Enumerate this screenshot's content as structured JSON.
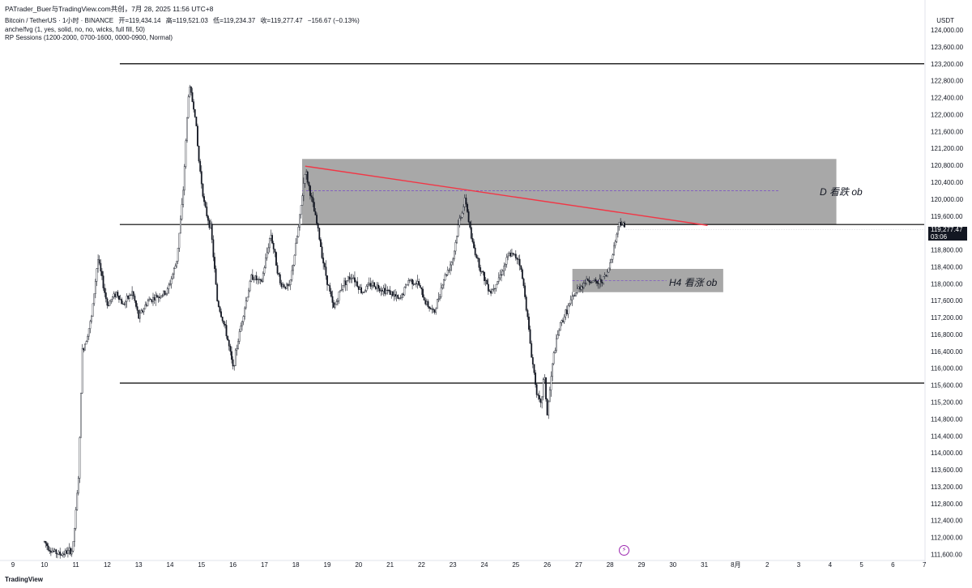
{
  "header": {
    "shared_by": "PATrader_Buer与TradingView.com共创，7月 28, 2025 11:56 UTC+8",
    "symbol": "Bitcoin / TetherUS · 1小时 · BINANCE",
    "open": "开=119,434.14",
    "high": "高=119,521.03",
    "low": "低=119,234.37",
    "close": "收=119,277.47",
    "change": "−156.67 (−0.13%)",
    "indicator_1": "anche/fvg (1, yes, solid, no, no, wicks, full fill, 50)",
    "indicator_2": "RP Sessions (1200-2000, 0700-1600, 0000-0900, Normal)"
  },
  "unit_label": "USDT",
  "last_price": "119,277.47",
  "countdown": "03:06",
  "brand": "TradingView",
  "colors": {
    "candle": "#131722",
    "zone": "#9e9e9e",
    "trendline": "#f23645",
    "midline": "#7e57c2",
    "level": "#000000"
  },
  "chart_data": {
    "type": "candlestick",
    "ylim": [
      111400,
      124400
    ],
    "y_ticks": [
      "111,600.00",
      "112,000.00",
      "112,400.00",
      "112,800.00",
      "113,200.00",
      "113,600.00",
      "114,000.00",
      "114,400.00",
      "114,800.00",
      "115,200.00",
      "115,600.00",
      "116,000.00",
      "116,400.00",
      "116,800.00",
      "117,200.00",
      "117,600.00",
      "118,000.00",
      "118,400.00",
      "118,800.00",
      "119,200.00",
      "119,600.00",
      "120,000.00",
      "120,400.00",
      "120,800.00",
      "121,200.00",
      "121,600.00",
      "122,000.00",
      "122,400.00",
      "122,800.00",
      "123,200.00",
      "123,600.00",
      "124,000.00"
    ],
    "x_ticks": [
      "9",
      "10",
      "11",
      "12",
      "13",
      "14",
      "15",
      "16",
      "17",
      "18",
      "19",
      "20",
      "21",
      "22",
      "23",
      "24",
      "25",
      "26",
      "27",
      "28",
      "29",
      "30",
      "31",
      "8月",
      "2",
      "3",
      "4",
      "5",
      "6",
      "7"
    ],
    "price_path": [
      [
        10.0,
        111900
      ],
      [
        10.2,
        111700
      ],
      [
        10.5,
        111600
      ],
      [
        10.9,
        111700
      ],
      [
        11.0,
        112600
      ],
      [
        11.1,
        113600
      ],
      [
        11.2,
        116400
      ],
      [
        11.3,
        116600
      ],
      [
        11.5,
        117200
      ],
      [
        11.7,
        118600
      ],
      [
        12.0,
        117500
      ],
      [
        12.3,
        117800
      ],
      [
        12.5,
        117500
      ],
      [
        12.8,
        117800
      ],
      [
        13.0,
        117200
      ],
      [
        13.3,
        117600
      ],
      [
        13.6,
        117700
      ],
      [
        13.9,
        117800
      ],
      [
        14.2,
        118500
      ],
      [
        14.4,
        120000
      ],
      [
        14.6,
        122700
      ],
      [
        14.8,
        122000
      ],
      [
        14.9,
        121000
      ],
      [
        15.1,
        119800
      ],
      [
        15.3,
        119300
      ],
      [
        15.5,
        117600
      ],
      [
        15.8,
        116800
      ],
      [
        16.0,
        116000
      ],
      [
        16.3,
        117200
      ],
      [
        16.6,
        118200
      ],
      [
        16.9,
        118000
      ],
      [
        17.2,
        119200
      ],
      [
        17.5,
        118000
      ],
      [
        17.8,
        117900
      ],
      [
        18.1,
        119400
      ],
      [
        18.3,
        120700
      ],
      [
        18.5,
        120000
      ],
      [
        18.7,
        119300
      ],
      [
        18.9,
        118400
      ],
      [
        19.2,
        117400
      ],
      [
        19.5,
        118000
      ],
      [
        19.8,
        118200
      ],
      [
        20.1,
        117800
      ],
      [
        20.4,
        118000
      ],
      [
        20.7,
        117900
      ],
      [
        21.0,
        117800
      ],
      [
        21.3,
        117600
      ],
      [
        21.6,
        118100
      ],
      [
        21.9,
        118000
      ],
      [
        22.1,
        117600
      ],
      [
        22.4,
        117300
      ],
      [
        22.7,
        118100
      ],
      [
        23.0,
        118600
      ],
      [
        23.2,
        119500
      ],
      [
        23.4,
        120000
      ],
      [
        23.6,
        119000
      ],
      [
        23.9,
        118300
      ],
      [
        24.2,
        117800
      ],
      [
        24.5,
        118200
      ],
      [
        24.8,
        118700
      ],
      [
        25.1,
        118600
      ],
      [
        25.3,
        117700
      ],
      [
        25.5,
        116300
      ],
      [
        25.7,
        115300
      ],
      [
        25.8,
        115100
      ],
      [
        25.9,
        115900
      ],
      [
        26.0,
        114900
      ],
      [
        26.2,
        116300
      ],
      [
        26.4,
        117000
      ],
      [
        26.7,
        117500
      ],
      [
        27.0,
        117900
      ],
      [
        27.3,
        118100
      ],
      [
        27.6,
        118000
      ],
      [
        27.9,
        118200
      ],
      [
        28.1,
        118800
      ],
      [
        28.3,
        119500
      ],
      [
        28.5,
        119277
      ]
    ],
    "horizontal_levels": [
      {
        "price": 123200,
        "x_from": 12.4
      },
      {
        "price": 119400,
        "x_from": 12.4
      },
      {
        "price": 115650,
        "x_from": 12.4
      }
    ],
    "zones": [
      {
        "label": "D 看跌 ob",
        "x_from": 18.2,
        "x_to": 35.2,
        "y_from": 119400,
        "y_to": 120950,
        "mid": 120200
      },
      {
        "label": "H4 看涨 ob",
        "x_from": 26.8,
        "x_to": 31.6,
        "y_from": 117800,
        "y_to": 118350,
        "mid": 118070
      }
    ],
    "trendline": {
      "x1": 18.3,
      "y1": 120780,
      "x2": 31.1,
      "y2": 119380
    }
  }
}
